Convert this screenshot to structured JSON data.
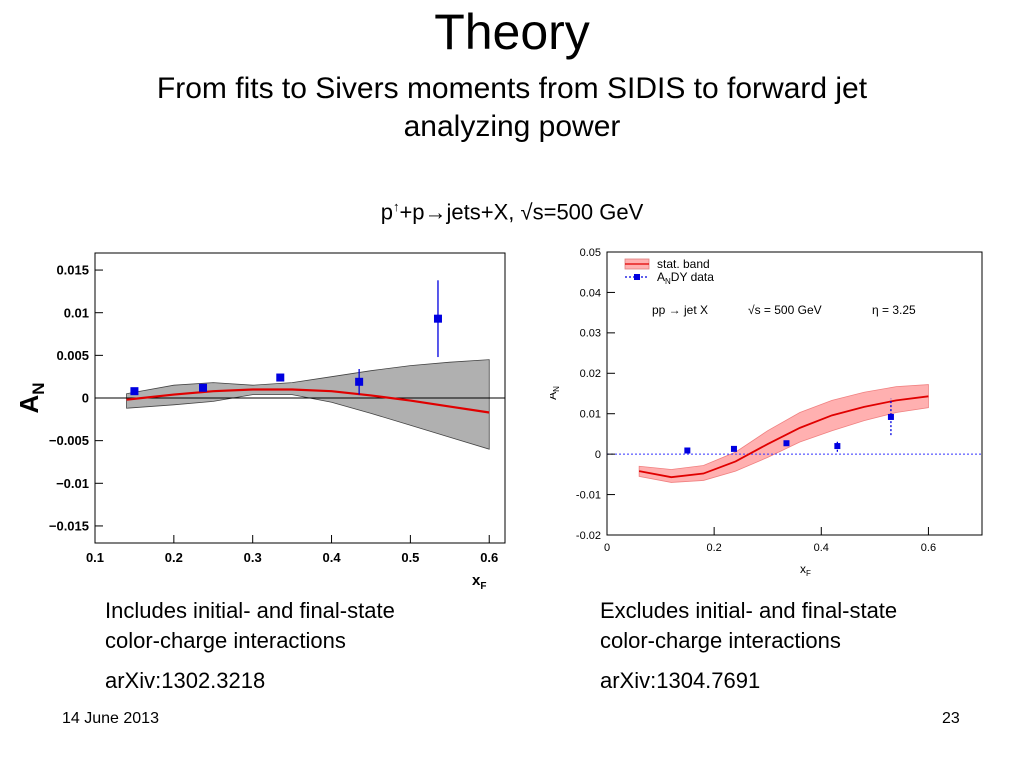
{
  "slide": {
    "title": "Theory",
    "subtitle": "From fits to Sivers moments from SIDIS to forward jet analyzing power",
    "reaction_parts": [
      "p",
      "↑",
      "+p→jets+X, √s=500 GeV"
    ],
    "left_caption_line1": "Includes initial- and final-state",
    "left_caption_line2": "color-charge interactions",
    "left_ref": "arXiv:1302.3218",
    "right_caption_line1": "Excludes initial- and final-state",
    "right_caption_line2": "color-charge interactions",
    "right_ref": "arXiv:1304.7691",
    "date": "14 June 2013",
    "page_number": "23"
  },
  "chart_data": [
    {
      "type": "line",
      "title": "",
      "xlabel": "x_F",
      "ylabel": "A_N",
      "xlim": [
        0.1,
        0.62
      ],
      "ylim": [
        -0.017,
        0.017
      ],
      "xticks": [
        "0.1",
        "0.2",
        "0.3",
        "0.4",
        "0.5",
        "0.6"
      ],
      "yticks": [
        "0.015",
        "0.01",
        "0.005",
        "0",
        "−0.005",
        "−0.01",
        "−0.015"
      ],
      "zero_line": true,
      "colors": {
        "band": "#b0b0b0",
        "curve": "#e00000",
        "points": "#0000e0"
      },
      "band": {
        "x": [
          0.14,
          0.2,
          0.25,
          0.3,
          0.35,
          0.4,
          0.45,
          0.5,
          0.55,
          0.6
        ],
        "upper": [
          0.0005,
          0.0015,
          0.0018,
          0.0015,
          0.0018,
          0.0025,
          0.0032,
          0.0038,
          0.0042,
          0.0045
        ],
        "lower": [
          -0.0012,
          -0.0008,
          -0.0004,
          0.0004,
          0.0004,
          -0.0005,
          -0.0018,
          -0.0032,
          -0.0046,
          -0.006
        ]
      },
      "series": [
        {
          "x": [
            0.14,
            0.2,
            0.25,
            0.3,
            0.35,
            0.4,
            0.45,
            0.5,
            0.55,
            0.6
          ],
          "y": [
            -0.0002,
            0.0004,
            0.0008,
            0.001,
            0.001,
            0.0008,
            0.0003,
            -0.0003,
            -0.001,
            -0.0017
          ]
        }
      ],
      "points": [
        {
          "x": 0.15,
          "y": 0.0008,
          "err": 0.0002
        },
        {
          "x": 0.237,
          "y": 0.0012,
          "err": 0.0002
        },
        {
          "x": 0.335,
          "y": 0.0024,
          "err": 0.0004
        },
        {
          "x": 0.435,
          "y": 0.0019,
          "err": 0.0015
        },
        {
          "x": 0.535,
          "y": 0.0093,
          "err": 0.0045
        }
      ]
    },
    {
      "type": "line",
      "title": "",
      "xlabel": "x_F",
      "ylabel": "A_N",
      "xlim": [
        0,
        0.7
      ],
      "ylim": [
        -0.02,
        0.05
      ],
      "xticks": [
        "0",
        "0.2",
        "0.4",
        "0.6"
      ],
      "yticks": [
        "0.05",
        "0.04",
        "0.03",
        "0.02",
        "0.01",
        "0",
        "-0.01",
        "-0.02"
      ],
      "zero_line": true,
      "annotations": [
        "pp → jet X",
        "√s = 500 GeV",
        "η = 3.25"
      ],
      "legend": {
        "position": "top-left",
        "entries": [
          "stat. band",
          "A_N DY data"
        ]
      },
      "colors": {
        "band": "#ffb0b0",
        "curve": "#e00000",
        "points": "#0000e0"
      },
      "band": {
        "x": [
          0.06,
          0.12,
          0.18,
          0.24,
          0.3,
          0.36,
          0.42,
          0.48,
          0.54,
          0.6
        ],
        "upper": [
          -0.003,
          -0.0038,
          -0.0028,
          0.0005,
          0.0058,
          0.0103,
          0.0133,
          0.0153,
          0.0167,
          0.0172
        ],
        "lower": [
          -0.0055,
          -0.007,
          -0.0065,
          -0.0042,
          -0.0008,
          0.003,
          0.0058,
          0.0083,
          0.0103,
          0.0115
        ]
      },
      "series": [
        {
          "x": [
            0.06,
            0.12,
            0.18,
            0.24,
            0.3,
            0.36,
            0.42,
            0.48,
            0.54,
            0.6
          ],
          "y": [
            -0.0042,
            -0.0057,
            -0.0048,
            -0.0018,
            0.0025,
            0.0065,
            0.0096,
            0.0117,
            0.0133,
            0.0143
          ]
        }
      ],
      "points": [
        {
          "x": 0.15,
          "y": 0.0009,
          "err": 0.0002
        },
        {
          "x": 0.237,
          "y": 0.0013,
          "err": 0.0003
        },
        {
          "x": 0.335,
          "y": 0.0027,
          "err": 0.0004
        },
        {
          "x": 0.43,
          "y": 0.002,
          "err": 0.0014
        },
        {
          "x": 0.53,
          "y": 0.0092,
          "err": 0.0045
        }
      ]
    }
  ]
}
